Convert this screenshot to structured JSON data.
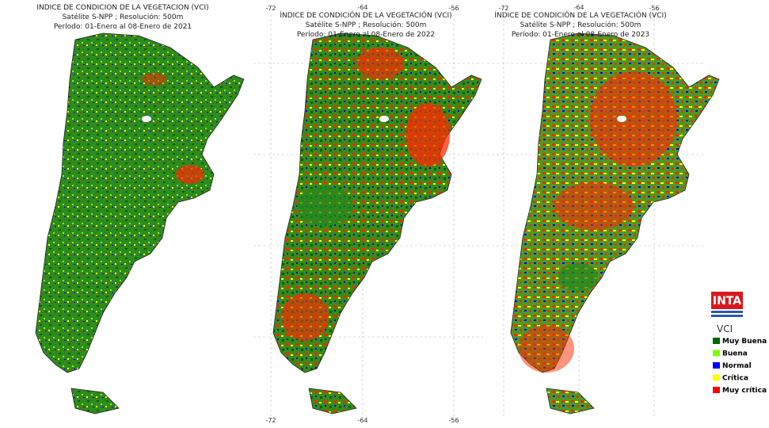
{
  "maps": [
    {
      "title": "INDICE DE CONDICION DE LA VEGETACION (VCI)",
      "subtitle": "Satélite S-NPP ; Resolución: 500m",
      "period": "Período: 01-Enero al 08-Enero de 2021"
    },
    {
      "title": "ÍNDICE DE CONDICIÓN DE LA VEGETACIÓN (VCI)",
      "subtitle": "Satélite S-NPP ; Resolución: 500m",
      "period": "Período: 01-Enero al 08-Enero de 2022",
      "lon_top": [
        "-72",
        "-64",
        "-56"
      ],
      "lon_bottom": [
        "-72",
        "-64",
        "-56"
      ]
    },
    {
      "title": "ÍNDICE DE CONDICIÓN DE LA VEGETACIÓN (VCI)",
      "subtitle": "Satélite S-NPP ; Resolución: 500m",
      "period": "Período: 01-Enero al 08-Enero de 2023",
      "lon_top": [
        "-72",
        "-64",
        "-56"
      ]
    }
  ],
  "logo": "INTA",
  "legend": {
    "title": "VCI",
    "items": [
      {
        "label": "Muy Buena",
        "color": "#006400"
      },
      {
        "label": "Buena",
        "color": "#7cfc00"
      },
      {
        "label": "Normal",
        "color": "#0000ff"
      },
      {
        "label": "Crítica",
        "color": "#ffff00"
      },
      {
        "label": "Muy crítica",
        "color": "#ff0000"
      }
    ]
  }
}
